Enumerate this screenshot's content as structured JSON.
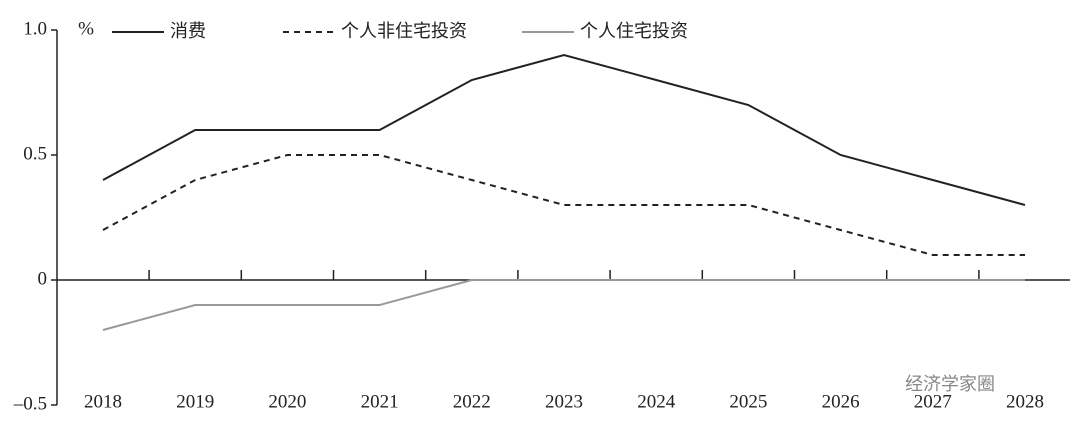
{
  "chart_data": {
    "type": "line",
    "unit_label": "%",
    "categories": [
      "2018",
      "2019",
      "2020",
      "2021",
      "2022",
      "2023",
      "2024",
      "2025",
      "2026",
      "2027",
      "2028"
    ],
    "series": [
      {
        "name": "消费",
        "color": "#222222",
        "dash": "solid",
        "values": [
          0.4,
          0.6,
          0.6,
          0.6,
          0.8,
          0.9,
          0.8,
          0.7,
          0.5,
          0.4,
          0.3
        ]
      },
      {
        "name": "个人非住宅投资",
        "color": "#222222",
        "dash": "dashed",
        "values": [
          0.2,
          0.4,
          0.5,
          0.5,
          0.4,
          0.3,
          0.3,
          0.3,
          0.2,
          0.1,
          0.1
        ]
      },
      {
        "name": "个人住宅投资",
        "color": "#999999",
        "dash": "solid",
        "values": [
          -0.2,
          -0.1,
          -0.1,
          -0.1,
          0,
          0,
          0,
          0,
          0,
          0,
          0
        ]
      }
    ],
    "ylim": [
      -0.5,
      1.0
    ],
    "yticks": [
      {
        "value": -0.5,
        "label": "–0.5"
      },
      0,
      0.5,
      {
        "value": 1.0,
        "label": "1.0"
      }
    ],
    "legend": "top",
    "watermark": "经济学家圈"
  }
}
